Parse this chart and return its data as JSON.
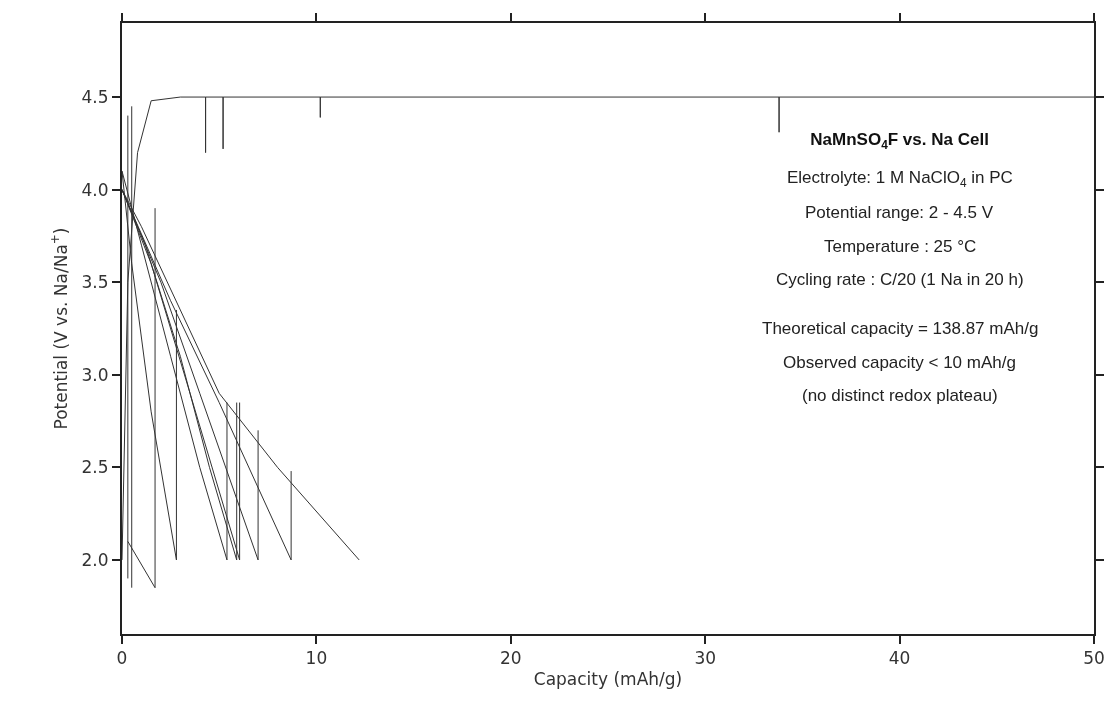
{
  "chart_data": {
    "type": "line",
    "title": "NaMnSO$_{4}$F vs. Na Cell",
    "xlabel": "Capacity (mAh/g)",
    "ylabel": "Potential (V vs. Na/Na$^{+}$)",
    "xlim": [
      0,
      50
    ],
    "xticks": [
      0,
      10,
      20,
      30,
      40,
      50
    ],
    "ylim": [
      1.6,
      4.9
    ],
    "yticks": [
      {
        "value": 2,
        "label": "2.0"
      },
      {
        "value": 2.5,
        "label": "2.5"
      },
      {
        "value": 3,
        "label": "3.0"
      },
      {
        "value": 3.5,
        "label": "3.5"
      },
      {
        "value": 4,
        "label": "4.0"
      },
      {
        "value": 4.5,
        "label": "4.5"
      }
    ],
    "marker": "none",
    "line_style": "solid",
    "annotations": [
      "Electrolyte: 1 M NaClO$_{4}$ in PC",
      "Potential range: 2 - 4.5 V",
      "Temperature : 25 °C",
      "Cycling rate : C/20 (1 Na in 20 h)",
      "Theoretical capacity = 138.87 mAh/g",
      "Observed capacity < 10 mAh/g",
      "(no distinct redox plateau)"
    ],
    "series": [
      {
        "color": "#333333",
        "x": [
          0,
          0.3,
          0.8,
          1.5,
          3,
          4.3,
          4.3,
          4.3,
          5.2,
          5.2,
          5.2,
          10.2,
          10.2,
          10.2,
          33.8,
          33.8,
          33.8,
          50
        ],
        "values": [
          2.0,
          3.5,
          4.2,
          4.48,
          4.5,
          4.5,
          4.2,
          4.5,
          4.5,
          4.22,
          4.5,
          4.5,
          4.39,
          4.5,
          4.5,
          4.31,
          4.5,
          4.5
        ]
      },
      {
        "color": "#333333",
        "x": [
          0,
          0.5,
          1.5,
          2.8,
          2.8
        ],
        "values": [
          4.1,
          3.6,
          2.8,
          2.0,
          3.35
        ]
      },
      {
        "color": "#333333",
        "x": [
          0,
          1,
          2.5,
          4,
          5.4,
          5.4
        ],
        "values": [
          4.1,
          3.7,
          3.1,
          2.5,
          2.0,
          2.85
        ]
      },
      {
        "color": "#333333",
        "x": [
          0,
          1.2,
          3,
          4.5,
          5.9,
          5.9
        ],
        "values": [
          4.0,
          3.7,
          3.1,
          2.5,
          2.0,
          2.85
        ]
      },
      {
        "color": "#333333",
        "x": [
          0,
          1.5,
          3.5,
          6.05,
          6.05
        ],
        "values": [
          4.0,
          3.6,
          2.9,
          2.0,
          2.85
        ]
      },
      {
        "color": "#333333",
        "x": [
          0,
          2,
          4,
          7,
          7
        ],
        "values": [
          4.0,
          3.5,
          2.9,
          2.0,
          2.7
        ]
      },
      {
        "color": "#333333",
        "x": [
          0,
          2.5,
          5,
          8.7,
          8.7
        ],
        "values": [
          4.0,
          3.4,
          2.85,
          2.0,
          2.48
        ]
      },
      {
        "color": "#333333",
        "x": [
          0,
          1,
          3,
          5,
          8,
          12.2
        ],
        "values": [
          4.0,
          3.8,
          3.35,
          2.9,
          2.5,
          2.0
        ]
      },
      {
        "color": "#333333",
        "x": [
          0.3,
          1.7,
          1.7
        ],
        "values": [
          2.1,
          1.85,
          3.9
        ]
      },
      {
        "color": "#333333",
        "x": [
          0.3,
          0.3
        ],
        "values": [
          1.9,
          4.4
        ]
      },
      {
        "color": "#333333",
        "x": [
          0.5,
          0.5
        ],
        "values": [
          1.85,
          4.45
        ]
      }
    ]
  }
}
